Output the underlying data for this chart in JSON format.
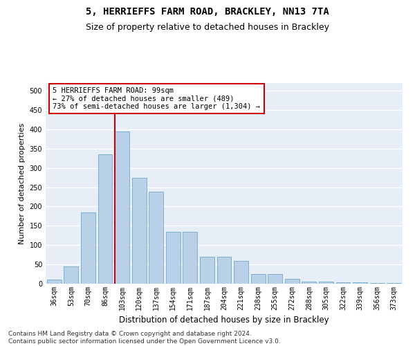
{
  "title_line1": "5, HERRIEFFS FARM ROAD, BRACKLEY, NN13 7TA",
  "title_line2": "Size of property relative to detached houses in Brackley",
  "xlabel": "Distribution of detached houses by size in Brackley",
  "ylabel": "Number of detached properties",
  "bar_color": "#b8d0e8",
  "bar_edge_color": "#6fa8d0",
  "background_color": "#e8eef8",
  "grid_color": "#ffffff",
  "categories": [
    "36sqm",
    "53sqm",
    "70sqm",
    "86sqm",
    "103sqm",
    "120sqm",
    "137sqm",
    "154sqm",
    "171sqm",
    "187sqm",
    "204sqm",
    "221sqm",
    "238sqm",
    "255sqm",
    "272sqm",
    "288sqm",
    "305sqm",
    "322sqm",
    "339sqm",
    "356sqm",
    "373sqm"
  ],
  "values": [
    10,
    45,
    185,
    335,
    395,
    275,
    238,
    135,
    135,
    70,
    70,
    60,
    25,
    25,
    12,
    6,
    5,
    4,
    3,
    2,
    2
  ],
  "ylim": [
    0,
    520
  ],
  "yticks": [
    0,
    50,
    100,
    150,
    200,
    250,
    300,
    350,
    400,
    450,
    500
  ],
  "vline_index": 4,
  "vline_color": "#cc0000",
  "annotation_line1": "5 HERRIEFFS FARM ROAD: 99sqm",
  "annotation_line2": "← 27% of detached houses are smaller (489)",
  "annotation_line3": "73% of semi-detached houses are larger (1,304) →",
  "annotation_box_color": "#ffffff",
  "annotation_box_edge": "#cc0000",
  "footer_line1": "Contains HM Land Registry data © Crown copyright and database right 2024.",
  "footer_line2": "Contains public sector information licensed under the Open Government Licence v3.0.",
  "title_fontsize": 10,
  "subtitle_fontsize": 9,
  "xlabel_fontsize": 8.5,
  "ylabel_fontsize": 8,
  "tick_fontsize": 7,
  "annotation_fontsize": 7.5,
  "footer_fontsize": 6.5
}
